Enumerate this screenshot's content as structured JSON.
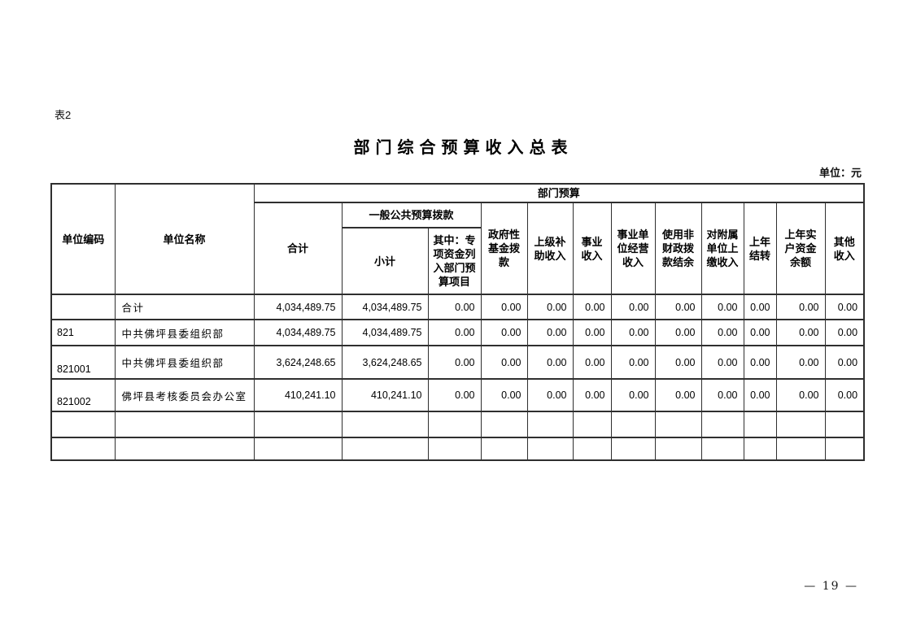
{
  "page": {
    "table_label": "表2",
    "title": "部门综合预算收入总表",
    "unit_note": "单位：元",
    "page_number": "— 19 —"
  },
  "table": {
    "header": {
      "unit_code": "单位编码",
      "unit_name": "单位名称",
      "dept_budget": "部门预算",
      "total": "合计",
      "general_public_budget": "一般公共预算拨款",
      "subtotal": "小计",
      "special_funds": "其中：专\n项资金列\n入部门预\n算项目",
      "gov_fund": "政府性\n基金拨\n款",
      "superior_subsidy": "上级补\n助收入",
      "business_income": "事业\n收入",
      "operating_income": "事业单\n位经营\n收入",
      "non_fiscal_balance": "使用非\n财政拨\n款结余",
      "affiliated_income": "对附属\n单位上\n缴收入",
      "prev_year_carryover": "上年\n结转",
      "prev_year_actual_balance": "上年实\n户资金\n余额",
      "other_income": "其他\n收入"
    },
    "rows": [
      {
        "code": "",
        "name": "合计",
        "values": [
          "4,034,489.75",
          "4,034,489.75",
          "0.00",
          "0.00",
          "0.00",
          "0.00",
          "0.00",
          "0.00",
          "0.00",
          "0.00",
          "0.00",
          "0.00"
        ]
      },
      {
        "code": "821",
        "name": "中共佛坪县委组织部",
        "values": [
          "4,034,489.75",
          "4,034,489.75",
          "0.00",
          "0.00",
          "0.00",
          "0.00",
          "0.00",
          "0.00",
          "0.00",
          "0.00",
          "0.00",
          "0.00"
        ]
      },
      {
        "code": "821001",
        "name": "中共佛坪县委组织部",
        "values": [
          "3,624,248.65",
          "3,624,248.65",
          "0.00",
          "0.00",
          "0.00",
          "0.00",
          "0.00",
          "0.00",
          "0.00",
          "0.00",
          "0.00",
          "0.00"
        ]
      },
      {
        "code": "821002",
        "name": "佛坪县考核委员会办公室",
        "values": [
          "410,241.10",
          "410,241.10",
          "0.00",
          "0.00",
          "0.00",
          "0.00",
          "0.00",
          "0.00",
          "0.00",
          "0.00",
          "0.00",
          "0.00"
        ]
      },
      {
        "code": "",
        "name": "",
        "values": [
          "",
          "",
          "",
          "",
          "",
          "",
          "",
          "",
          "",
          "",
          "",
          ""
        ]
      },
      {
        "code": "",
        "name": "",
        "values": [
          "",
          "",
          "",
          "",
          "",
          "",
          "",
          "",
          "",
          "",
          "",
          ""
        ]
      }
    ]
  }
}
